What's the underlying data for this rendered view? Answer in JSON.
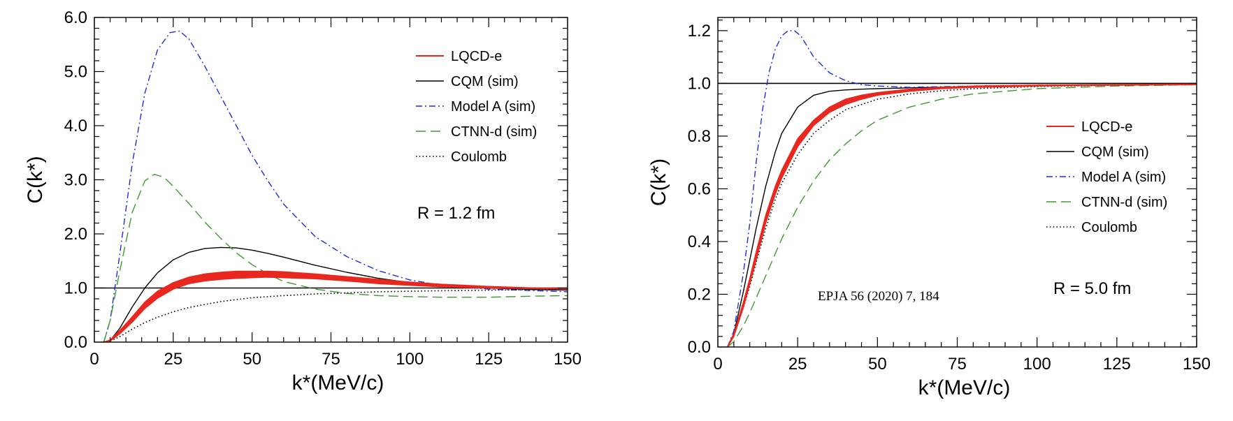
{
  "chart_data": [
    {
      "type": "line",
      "xlabel": "k*(MeV/c)",
      "ylabel": "C(k*)",
      "xlim": [
        0,
        150
      ],
      "ylim": [
        0,
        6.0
      ],
      "xticks": [
        0,
        25,
        50,
        75,
        100,
        125,
        150
      ],
      "xticklabels": [
        "0",
        "25",
        "50",
        "75",
        "100",
        "125",
        "150"
      ],
      "yticks": [
        0,
        1,
        2,
        3,
        4,
        5,
        6
      ],
      "yticklabels": [
        "0.0",
        "1.0",
        "2.0",
        "3.0",
        "4.0",
        "5.0",
        "6.0"
      ],
      "reference_line": 1.0,
      "legend_position": "top-right",
      "annotation": "R = 1.2 fm",
      "series": [
        {
          "name": "LQCD-e",
          "style": "band",
          "color": "#e8281e",
          "x": [
            3,
            5,
            8,
            12,
            16,
            20,
            25,
            30,
            35,
            40,
            45,
            50,
            55,
            60,
            70,
            80,
            90,
            100,
            110,
            125,
            140,
            150
          ],
          "lo": [
            0,
            0.02,
            0.15,
            0.37,
            0.62,
            0.81,
            0.98,
            1.08,
            1.13,
            1.16,
            1.18,
            1.19,
            1.2,
            1.19,
            1.17,
            1.13,
            1.08,
            1.05,
            1.02,
            1.0,
            0.99,
            0.98
          ],
          "hi": [
            0,
            0.04,
            0.21,
            0.47,
            0.74,
            0.94,
            1.1,
            1.2,
            1.26,
            1.29,
            1.31,
            1.31,
            1.31,
            1.3,
            1.26,
            1.21,
            1.16,
            1.11,
            1.07,
            1.03,
            1.0,
            0.99
          ]
        },
        {
          "name": "CQM (sim)",
          "style": "solid",
          "color": "#000000",
          "x": [
            3,
            5,
            8,
            12,
            16,
            20,
            25,
            30,
            35,
            40,
            45,
            50,
            55,
            60,
            70,
            80,
            90,
            100,
            110,
            125,
            140,
            150
          ],
          "y": [
            0,
            0.03,
            0.25,
            0.65,
            1.0,
            1.28,
            1.52,
            1.66,
            1.73,
            1.75,
            1.74,
            1.7,
            1.64,
            1.57,
            1.42,
            1.29,
            1.18,
            1.1,
            1.05,
            1.0,
            0.97,
            0.96
          ]
        },
        {
          "name": "Model A (sim)",
          "style": "dashdot",
          "color": "#1b2ed6",
          "x": [
            3,
            5,
            8,
            12,
            16,
            20,
            24,
            27,
            30,
            35,
            40,
            45,
            50,
            55,
            60,
            70,
            80,
            90,
            100,
            110,
            125,
            140,
            150
          ],
          "y": [
            0,
            0.4,
            1.6,
            3.3,
            4.6,
            5.4,
            5.72,
            5.75,
            5.6,
            5.1,
            4.55,
            4.0,
            3.45,
            2.98,
            2.55,
            1.95,
            1.58,
            1.32,
            1.15,
            1.05,
            0.98,
            0.95,
            0.93
          ]
        },
        {
          "name": "CTNN-d (sim)",
          "style": "dashed",
          "color": "#3c9a2e",
          "x": [
            3,
            5,
            8,
            12,
            16,
            19,
            22,
            25,
            30,
            35,
            40,
            45,
            50,
            55,
            60,
            70,
            80,
            90,
            100,
            110,
            125,
            140,
            150
          ],
          "y": [
            0,
            0.4,
            1.3,
            2.4,
            2.98,
            3.1,
            3.05,
            2.88,
            2.56,
            2.22,
            1.92,
            1.65,
            1.43,
            1.26,
            1.12,
            0.98,
            0.9,
            0.86,
            0.84,
            0.83,
            0.83,
            0.85,
            0.86
          ]
        },
        {
          "name": "Coulomb",
          "style": "dotted",
          "color": "#000000",
          "x": [
            3,
            5,
            8,
            12,
            16,
            20,
            25,
            30,
            40,
            50,
            60,
            70,
            80,
            90,
            100,
            110,
            125,
            140,
            150
          ],
          "y": [
            0,
            0.02,
            0.1,
            0.24,
            0.36,
            0.46,
            0.56,
            0.64,
            0.75,
            0.82,
            0.86,
            0.89,
            0.91,
            0.93,
            0.94,
            0.95,
            0.96,
            0.97,
            0.97
          ]
        }
      ]
    },
    {
      "type": "line",
      "xlabel": "k*(MeV/c)",
      "ylabel": "C(k*)",
      "xlim": [
        0,
        150
      ],
      "ylim": [
        0,
        1.25
      ],
      "xticks": [
        0,
        25,
        50,
        75,
        100,
        125,
        150
      ],
      "xticklabels": [
        "0",
        "25",
        "50",
        "75",
        "100",
        "125",
        "150"
      ],
      "yticks": [
        0,
        0.2,
        0.4,
        0.6,
        0.8,
        1.0,
        1.2
      ],
      "yticklabels": [
        "0.0",
        "0.2",
        "0.4",
        "0.6",
        "0.8",
        "1.0",
        "1.2"
      ],
      "reference_line": 1.0,
      "legend_position": "middle-right",
      "annotation": "R = 5.0  fm",
      "citation": "EPJA 56 (2020) 7, 184",
      "series": [
        {
          "name": "LQCD-e",
          "style": "band",
          "color": "#e8281e",
          "x": [
            3,
            5,
            8,
            10,
            12,
            15,
            18,
            20,
            25,
            30,
            35,
            40,
            45,
            50,
            60,
            70,
            80,
            100,
            125,
            150
          ],
          "lo": [
            0,
            0.04,
            0.15,
            0.24,
            0.33,
            0.47,
            0.58,
            0.64,
            0.76,
            0.84,
            0.89,
            0.92,
            0.94,
            0.955,
            0.97,
            0.98,
            0.985,
            0.99,
            0.993,
            0.995
          ],
          "hi": [
            0,
            0.05,
            0.17,
            0.26,
            0.36,
            0.5,
            0.61,
            0.67,
            0.79,
            0.86,
            0.91,
            0.94,
            0.955,
            0.965,
            0.978,
            0.985,
            0.99,
            0.993,
            0.995,
            0.997
          ]
        },
        {
          "name": "CQM (sim)",
          "style": "solid",
          "color": "#000000",
          "x": [
            3,
            5,
            8,
            10,
            12,
            15,
            18,
            20,
            25,
            30,
            35,
            40,
            45,
            50,
            60,
            80,
            100,
            125,
            150
          ],
          "y": [
            0,
            0.05,
            0.21,
            0.33,
            0.45,
            0.61,
            0.74,
            0.81,
            0.91,
            0.955,
            0.97,
            0.975,
            0.978,
            0.98,
            0.983,
            0.988,
            0.992,
            0.995,
            0.997
          ]
        },
        {
          "name": "Model A (sim)",
          "style": "dashdot",
          "color": "#1b2ed6",
          "x": [
            3,
            5,
            8,
            10,
            12,
            14,
            16,
            18,
            20,
            22,
            24,
            26,
            28,
            30,
            35,
            40,
            45,
            50,
            60,
            80,
            100,
            125,
            150
          ],
          "y": [
            0,
            0.06,
            0.28,
            0.47,
            0.7,
            0.9,
            1.04,
            1.13,
            1.18,
            1.2,
            1.2,
            1.18,
            1.14,
            1.1,
            1.04,
            1.01,
            0.995,
            0.99,
            0.985,
            0.99,
            0.993,
            0.995,
            0.997
          ]
        },
        {
          "name": "CTNN-d (sim)",
          "style": "dashed",
          "color": "#3c9a2e",
          "x": [
            3,
            5,
            8,
            10,
            15,
            20,
            25,
            30,
            35,
            40,
            45,
            50,
            60,
            70,
            80,
            100,
            125,
            150
          ],
          "y": [
            0,
            0.02,
            0.08,
            0.13,
            0.27,
            0.41,
            0.53,
            0.63,
            0.71,
            0.77,
            0.82,
            0.86,
            0.91,
            0.94,
            0.96,
            0.98,
            0.99,
            0.995
          ]
        },
        {
          "name": "Coulomb",
          "style": "dotted",
          "color": "#000000",
          "x": [
            3,
            5,
            8,
            10,
            12,
            15,
            18,
            20,
            25,
            30,
            35,
            40,
            45,
            50,
            60,
            70,
            80,
            100,
            125,
            150
          ],
          "y": [
            0,
            0.04,
            0.15,
            0.23,
            0.32,
            0.45,
            0.56,
            0.62,
            0.73,
            0.81,
            0.86,
            0.9,
            0.92,
            0.94,
            0.96,
            0.972,
            0.98,
            0.988,
            0.993,
            0.995
          ]
        }
      ]
    }
  ]
}
